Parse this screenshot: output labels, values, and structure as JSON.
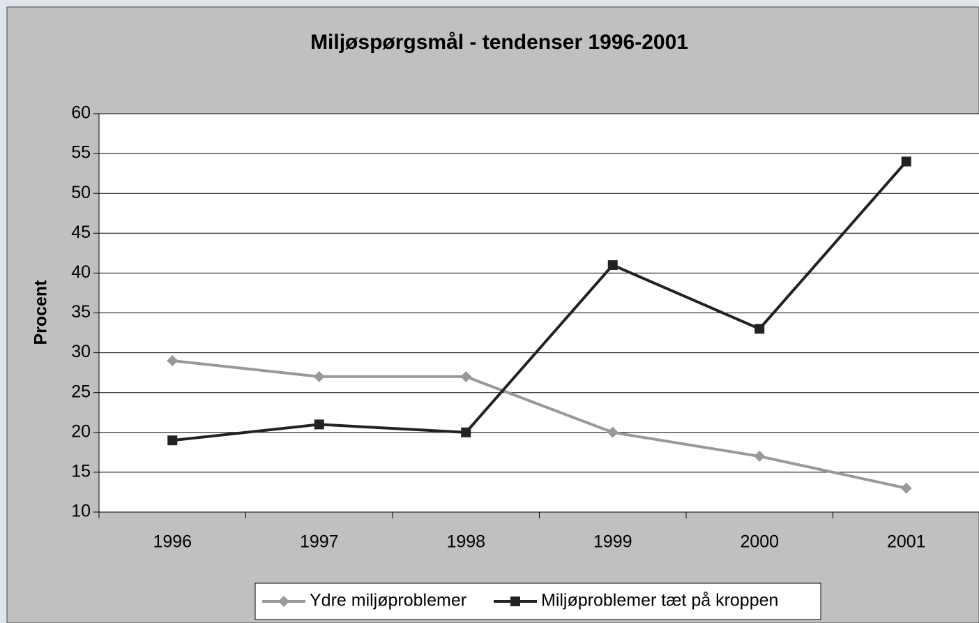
{
  "chart_data": {
    "type": "line",
    "title": "Miljøspørgsmål - tendenser 1996-2001",
    "y_label": "Procent",
    "categories": [
      "1996",
      "1997",
      "1998",
      "1999",
      "2000",
      "2001"
    ],
    "series": [
      {
        "name": "Ydre miljøproblemer",
        "color": "#999999",
        "marker": "diamond",
        "values": [
          29,
          27,
          27,
          20,
          17,
          13
        ]
      },
      {
        "name": "Miljøproblemer tæt på kroppen",
        "color": "#222222",
        "marker": "square",
        "values": [
          19,
          21,
          20,
          41,
          33,
          54
        ]
      }
    ],
    "ylim": [
      10,
      60
    ],
    "yticks": [
      10,
      15,
      20,
      25,
      30,
      35,
      40,
      45,
      50,
      55,
      60
    ],
    "grid": true,
    "legend": "bottom"
  }
}
